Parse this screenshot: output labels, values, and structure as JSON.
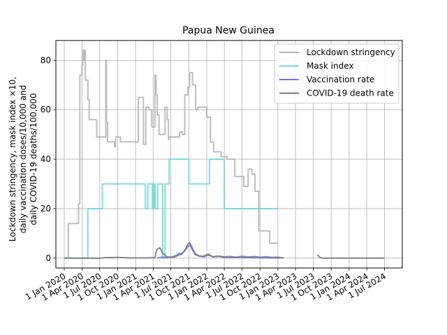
{
  "chart_data": {
    "type": "line",
    "title": "Papua New Guinea",
    "ylabel_lines": [
      "Lockdown stringency, mask index ×10,",
      "daily vaccination doses/10,000 and",
      "daily COVID-19 deaths/100,000"
    ],
    "xlabel": "",
    "ylim": [
      -4,
      88
    ],
    "xlim": [
      "2019-11-19",
      "2024-09-30"
    ],
    "x_ticks": [
      "2020-01-01",
      "2020-04-01",
      "2020-07-01",
      "2020-10-01",
      "2021-01-01",
      "2021-04-01",
      "2021-07-01",
      "2021-10-01",
      "2022-01-01",
      "2022-04-01",
      "2022-07-01",
      "2022-10-01",
      "2023-01-01",
      "2023-04-01",
      "2023-07-01",
      "2023-10-01",
      "2024-01-01",
      "2024-04-01",
      "2024-07-01"
    ],
    "x_tick_labels": [
      "1 Jan 2020",
      "1 Apr 2020",
      "1 Jul 2020",
      "1 Oct 2020",
      "1 Jan 2021",
      "1 Apr 2021",
      "1 Jul 2021",
      "1 Oct 2021",
      "1 Jan 2022",
      "1 Apr 2022",
      "1 Jul 2022",
      "1 Oct 2022",
      "1 Jan 2023",
      "1 Apr 2023",
      "1 Jul 2023",
      "1 Oct 2023",
      "1 Jan 2024",
      "1 Apr 2024",
      "1 Jul 2024"
    ],
    "y_ticks": [
      0,
      20,
      40,
      60,
      80
    ],
    "y_tick_labels": [
      "0",
      "20",
      "40",
      "60",
      "80"
    ],
    "grid": true,
    "legend_position": "top-right",
    "series": [
      {
        "name": "Lockdown stringency",
        "color": "#b3b3b3",
        "step": true,
        "points": [
          [
            "2020-01-01",
            0
          ],
          [
            "2020-01-22",
            0
          ],
          [
            "2020-01-22",
            14
          ],
          [
            "2020-03-14",
            14
          ],
          [
            "2020-03-14",
            22
          ],
          [
            "2020-03-21",
            22
          ],
          [
            "2020-03-21",
            74
          ],
          [
            "2020-04-01",
            74
          ],
          [
            "2020-04-01",
            78
          ],
          [
            "2020-04-05",
            78
          ],
          [
            "2020-04-05",
            84
          ],
          [
            "2020-04-10",
            84
          ],
          [
            "2020-04-10",
            80
          ],
          [
            "2020-04-14",
            80
          ],
          [
            "2020-04-14",
            84
          ],
          [
            "2020-04-18",
            84
          ],
          [
            "2020-04-18",
            72
          ],
          [
            "2020-05-01",
            72
          ],
          [
            "2020-05-01",
            64
          ],
          [
            "2020-05-08",
            64
          ],
          [
            "2020-05-08",
            56
          ],
          [
            "2020-06-15",
            56
          ],
          [
            "2020-06-15",
            49
          ],
          [
            "2020-08-01",
            49
          ],
          [
            "2020-08-01",
            80
          ],
          [
            "2020-08-05",
            80
          ],
          [
            "2020-08-05",
            55
          ],
          [
            "2020-08-10",
            55
          ],
          [
            "2020-08-10",
            47
          ],
          [
            "2020-09-15",
            47
          ],
          [
            "2020-09-15",
            45
          ],
          [
            "2020-09-20",
            45
          ],
          [
            "2020-09-20",
            49
          ],
          [
            "2020-10-15",
            49
          ],
          [
            "2020-10-15",
            47
          ],
          [
            "2021-01-15",
            47
          ],
          [
            "2021-01-15",
            65
          ],
          [
            "2021-02-10",
            65
          ],
          [
            "2021-02-10",
            46
          ],
          [
            "2021-02-22",
            46
          ],
          [
            "2021-02-22",
            61
          ],
          [
            "2021-03-10",
            61
          ],
          [
            "2021-03-10",
            60
          ],
          [
            "2021-03-25",
            60
          ],
          [
            "2021-03-25",
            53
          ],
          [
            "2021-04-10",
            53
          ],
          [
            "2021-04-10",
            74
          ],
          [
            "2021-04-16",
            74
          ],
          [
            "2021-04-16",
            66
          ],
          [
            "2021-04-22",
            66
          ],
          [
            "2021-04-22",
            58
          ],
          [
            "2021-05-01",
            58
          ],
          [
            "2021-05-01",
            50
          ],
          [
            "2021-06-01",
            50
          ],
          [
            "2021-06-01",
            61
          ],
          [
            "2021-06-12",
            61
          ],
          [
            "2021-06-12",
            56
          ],
          [
            "2021-06-18",
            56
          ],
          [
            "2021-06-18",
            48
          ],
          [
            "2021-06-22",
            48
          ],
          [
            "2021-06-22",
            49
          ],
          [
            "2021-08-15",
            49
          ],
          [
            "2021-08-15",
            51
          ],
          [
            "2021-08-28",
            51
          ],
          [
            "2021-08-28",
            50
          ],
          [
            "2021-09-10",
            50
          ],
          [
            "2021-09-10",
            66
          ],
          [
            "2021-09-25",
            66
          ],
          [
            "2021-09-25",
            69
          ],
          [
            "2021-10-05",
            69
          ],
          [
            "2021-10-05",
            75
          ],
          [
            "2021-10-20",
            75
          ],
          [
            "2021-10-20",
            70
          ],
          [
            "2021-11-05",
            70
          ],
          [
            "2021-11-05",
            60
          ],
          [
            "2021-11-15",
            60
          ],
          [
            "2021-11-15",
            61
          ],
          [
            "2022-01-01",
            61
          ],
          [
            "2022-01-01",
            57
          ],
          [
            "2022-01-20",
            57
          ],
          [
            "2022-01-20",
            47
          ],
          [
            "2022-02-05",
            47
          ],
          [
            "2022-02-05",
            43
          ],
          [
            "2022-03-15",
            43
          ],
          [
            "2022-03-15",
            41
          ],
          [
            "2022-04-15",
            41
          ],
          [
            "2022-04-15",
            40
          ],
          [
            "2022-05-25",
            40
          ],
          [
            "2022-05-25",
            33
          ],
          [
            "2022-07-10",
            33
          ],
          [
            "2022-07-10",
            29
          ],
          [
            "2022-08-01",
            29
          ],
          [
            "2022-08-01",
            36
          ],
          [
            "2022-08-20",
            36
          ],
          [
            "2022-08-20",
            34
          ],
          [
            "2022-09-05",
            34
          ],
          [
            "2022-09-05",
            27
          ],
          [
            "2022-09-25",
            27
          ],
          [
            "2022-09-25",
            11
          ],
          [
            "2022-11-20",
            11
          ],
          [
            "2022-11-20",
            6
          ],
          [
            "2022-12-31",
            6
          ]
        ]
      },
      {
        "name": "Mask index",
        "color": "#6ad8d2",
        "step": true,
        "points": [
          [
            "2020-01-01",
            0
          ],
          [
            "2020-05-01",
            0
          ],
          [
            "2020-05-01",
            20
          ],
          [
            "2020-07-15",
            20
          ],
          [
            "2020-07-15",
            30
          ],
          [
            "2021-02-20",
            30
          ],
          [
            "2021-02-20",
            20
          ],
          [
            "2021-03-05",
            20
          ],
          [
            "2021-03-05",
            30
          ],
          [
            "2021-03-28",
            30
          ],
          [
            "2021-03-28",
            20
          ],
          [
            "2021-04-05",
            20
          ],
          [
            "2021-04-05",
            30
          ],
          [
            "2021-04-12",
            30
          ],
          [
            "2021-04-12",
            20
          ],
          [
            "2021-04-25",
            20
          ],
          [
            "2021-04-25",
            30
          ],
          [
            "2021-05-20",
            30
          ],
          [
            "2021-05-20",
            0
          ],
          [
            "2021-06-01",
            0
          ],
          [
            "2021-06-01",
            30
          ],
          [
            "2021-06-22",
            30
          ],
          [
            "2021-06-22",
            40
          ],
          [
            "2021-10-01",
            40
          ],
          [
            "2021-10-01",
            30
          ],
          [
            "2022-01-15",
            30
          ],
          [
            "2022-01-15",
            40
          ],
          [
            "2022-04-01",
            40
          ],
          [
            "2022-04-01",
            20
          ],
          [
            "2022-12-31",
            20
          ]
        ]
      },
      {
        "name": "Vaccination rate",
        "color": "#7070ee",
        "step": false,
        "points": [
          [
            "2021-04-20",
            0
          ],
          [
            "2021-05-01",
            0.2
          ],
          [
            "2021-05-20",
            0.4
          ],
          [
            "2021-06-15",
            0.2
          ],
          [
            "2021-07-10",
            0.6
          ],
          [
            "2021-07-25",
            1.0
          ],
          [
            "2021-08-15",
            2.0
          ],
          [
            "2021-08-25",
            1.5
          ],
          [
            "2021-09-10",
            3.0
          ],
          [
            "2021-09-20",
            4.0
          ],
          [
            "2021-10-01",
            5.0
          ],
          [
            "2021-10-10",
            5.5
          ],
          [
            "2021-10-20",
            4.0
          ],
          [
            "2021-11-01",
            2.0
          ],
          [
            "2021-11-20",
            1.0
          ],
          [
            "2021-12-15",
            0.5
          ],
          [
            "2022-01-10",
            1.2
          ],
          [
            "2022-02-01",
            0.6
          ],
          [
            "2022-03-01",
            0.8
          ],
          [
            "2022-04-01",
            0.5
          ],
          [
            "2022-05-01",
            0.7
          ],
          [
            "2022-06-01",
            0.3
          ],
          [
            "2022-07-01",
            0.8
          ],
          [
            "2022-08-01",
            0.4
          ],
          [
            "2022-09-01",
            0.7
          ],
          [
            "2022-10-01",
            0.3
          ],
          [
            "2022-11-01",
            0.6
          ],
          [
            "2022-12-01",
            0.3
          ],
          [
            "2023-01-01",
            0.4
          ],
          [
            "2023-01-15",
            0.2
          ]
        ]
      },
      {
        "name": "COVID-19 death rate",
        "color": "#777777",
        "step": false,
        "segments": [
          [
            [
              "2020-01-01",
              0
            ],
            [
              "2020-07-01",
              0
            ],
            [
              "2020-08-01",
              0.2
            ],
            [
              "2020-10-01",
              0.3
            ],
            [
              "2020-12-01",
              0.1
            ],
            [
              "2021-03-01",
              0.1
            ],
            [
              "2021-04-10",
              0.2
            ],
            [
              "2021-04-20",
              3.5
            ],
            [
              "2021-05-05",
              4.2
            ],
            [
              "2021-05-20",
              2.0
            ],
            [
              "2021-06-10",
              0.5
            ],
            [
              "2021-07-15",
              0.3
            ],
            [
              "2021-08-20",
              1.5
            ],
            [
              "2021-09-10",
              3.0
            ],
            [
              "2021-09-25",
              5.5
            ],
            [
              "2021-10-05",
              6.3
            ],
            [
              "2021-10-15",
              4.0
            ],
            [
              "2021-11-01",
              1.5
            ],
            [
              "2021-11-20",
              0.8
            ],
            [
              "2021-12-15",
              0.8
            ],
            [
              "2022-01-10",
              1.6
            ],
            [
              "2022-02-01",
              0.5
            ],
            [
              "2022-03-01",
              0.8
            ],
            [
              "2022-04-01",
              0.3
            ],
            [
              "2022-05-01",
              0.2
            ],
            [
              "2022-06-01",
              0.3
            ],
            [
              "2022-07-01",
              0.2
            ],
            [
              "2022-08-01",
              0.3
            ],
            [
              "2022-09-01",
              0.1
            ],
            [
              "2022-10-01",
              0.2
            ],
            [
              "2022-11-01",
              0.1
            ],
            [
              "2022-12-01",
              0.1
            ],
            [
              "2023-01-01",
              0.1
            ],
            [
              "2023-02-01",
              0.1
            ]
          ],
          [
            [
              "2023-07-20",
              1.0
            ],
            [
              "2023-07-28",
              1.0
            ],
            [
              "2023-08-05",
              0.2
            ],
            [
              "2023-08-20",
              0.0
            ],
            [
              "2024-06-30",
              0.0
            ]
          ]
        ]
      }
    ]
  }
}
